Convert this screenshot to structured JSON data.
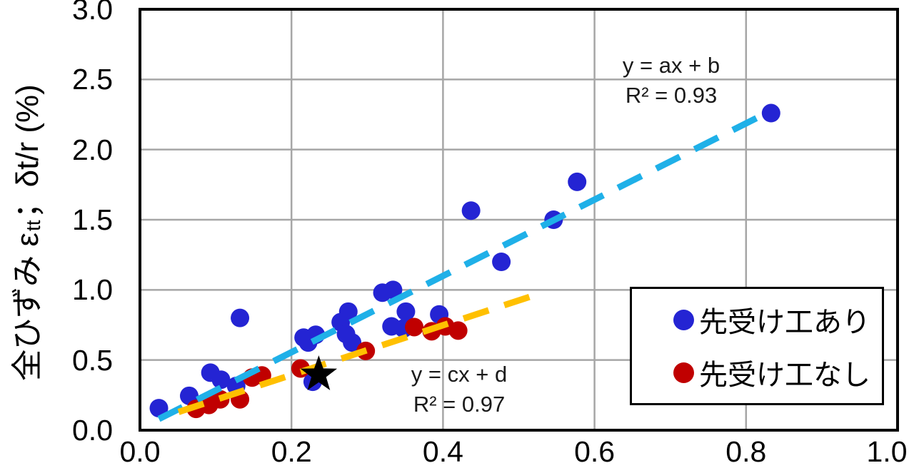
{
  "chart_data": {
    "type": "scatter",
    "ylabel": {
      "pre": "全ひずみ ε",
      "sub": "tt",
      "post": "；δt/r (%)"
    },
    "xlim": [
      0.0,
      1.0
    ],
    "ylim": [
      0.0,
      3.0
    ],
    "x_ticks": [
      "0.0",
      "0.2",
      "0.4",
      "0.6",
      "0.8",
      "1.0"
    ],
    "y_ticks": [
      "0.0",
      "0.5",
      "1.0",
      "1.5",
      "2.0",
      "2.5",
      "3.0"
    ],
    "grid": true,
    "grid_color": "#A6A6A6",
    "series": [
      {
        "name": "先受け工あり",
        "color": "#2424D3",
        "points": [
          [
            0.025,
            0.157
          ],
          [
            0.065,
            0.245
          ],
          [
            0.093,
            0.41
          ],
          [
            0.107,
            0.36
          ],
          [
            0.127,
            0.315
          ],
          [
            0.132,
            0.8
          ],
          [
            0.216,
            0.66
          ],
          [
            0.222,
            0.625
          ],
          [
            0.232,
            0.68
          ],
          [
            0.228,
            0.345
          ],
          [
            0.265,
            0.77
          ],
          [
            0.275,
            0.845
          ],
          [
            0.272,
            0.685
          ],
          [
            0.28,
            0.625
          ],
          [
            0.32,
            0.98
          ],
          [
            0.334,
            1.0
          ],
          [
            0.332,
            0.74
          ],
          [
            0.348,
            0.725
          ],
          [
            0.351,
            0.845
          ],
          [
            0.395,
            0.825
          ],
          [
            0.437,
            1.565
          ],
          [
            0.477,
            1.2
          ],
          [
            0.546,
            1.5
          ],
          [
            0.577,
            1.77
          ],
          [
            0.833,
            2.26
          ]
        ]
      },
      {
        "name": "先受け工なし",
        "color": "#C00000",
        "points": [
          [
            0.074,
            0.152
          ],
          [
            0.091,
            0.18
          ],
          [
            0.106,
            0.22
          ],
          [
            0.132,
            0.22
          ],
          [
            0.148,
            0.375
          ],
          [
            0.161,
            0.39
          ],
          [
            0.212,
            0.44
          ],
          [
            0.298,
            0.565
          ],
          [
            0.362,
            0.735
          ],
          [
            0.385,
            0.705
          ],
          [
            0.403,
            0.74
          ],
          [
            0.42,
            0.71
          ]
        ]
      }
    ],
    "star_point": {
      "x": 0.236,
      "y": 0.396,
      "color": "#000000"
    },
    "trendlines": [
      {
        "label": "y = ax + b",
        "r2": "R² = 0.93",
        "color": "#1FB0E8",
        "x1": 0.025,
        "y1": 0.08,
        "x2": 0.825,
        "y2": 2.255
      },
      {
        "label": "y = cx + d",
        "r2": "R² = 0.97",
        "color": "#FFC000",
        "x1": 0.051,
        "y1": 0.13,
        "x2": 0.517,
        "y2": 0.955
      }
    ],
    "legend_position": "right-middle"
  }
}
